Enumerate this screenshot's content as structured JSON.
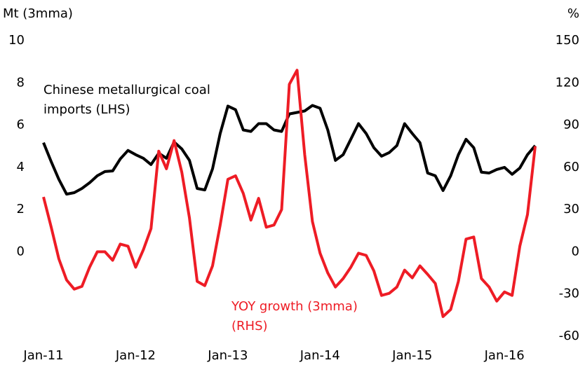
{
  "chart_data": {
    "type": "line",
    "y_label": "Mt (3mma)",
    "y2_label": "%",
    "annotations": [
      {
        "series": 0,
        "lines": [
          "Chinese metallurgical coal",
          "imports (LHS)"
        ]
      },
      {
        "series": 1,
        "lines": [
          "YOY growth (3mma)",
          "(RHS)"
        ]
      }
    ],
    "categories": [
      "Jan-11",
      null,
      null,
      null,
      null,
      null,
      null,
      null,
      null,
      null,
      null,
      null,
      "Jan-12",
      null,
      null,
      null,
      null,
      null,
      null,
      null,
      null,
      null,
      null,
      null,
      "Jan-13",
      null,
      null,
      null,
      null,
      null,
      null,
      null,
      null,
      null,
      null,
      null,
      "Jan-14",
      null,
      null,
      null,
      null,
      null,
      null,
      null,
      null,
      null,
      null,
      null,
      "Jan-15",
      null,
      null,
      null,
      null,
      null,
      null,
      null,
      null,
      null,
      null,
      null,
      "Jan-16",
      null,
      null,
      null,
      null
    ],
    "series": [
      {
        "name": "Chinese metallurgical coal imports (LHS)",
        "color": "#000000",
        "axis": "y",
        "values": [
          5.17,
          4.27,
          3.43,
          2.73,
          2.8,
          3.0,
          3.27,
          3.6,
          3.8,
          3.83,
          4.4,
          4.8,
          4.6,
          4.43,
          4.13,
          4.67,
          4.43,
          5.2,
          4.87,
          4.33,
          3.0,
          2.93,
          3.93,
          5.6,
          6.9,
          6.73,
          5.77,
          5.7,
          6.07,
          6.07,
          5.77,
          5.7,
          6.53,
          6.6,
          6.67,
          6.93,
          6.8,
          5.77,
          4.33,
          4.6,
          5.33,
          6.07,
          5.6,
          4.93,
          4.53,
          4.7,
          5.03,
          6.07,
          5.6,
          5.17,
          3.73,
          3.6,
          2.9,
          3.6,
          4.6,
          5.33,
          4.93,
          3.77,
          3.73,
          3.9,
          4.0,
          3.67,
          3.97,
          4.6,
          5.03
        ]
      },
      {
        "name": "YOY growth (3mma) (RHS)",
        "color": "#ee1c25",
        "axis": "y2",
        "values": [
          39,
          17.5,
          -5,
          -20,
          -26.5,
          -24.5,
          -11,
          0,
          0,
          -6,
          5.5,
          4,
          -11,
          1.5,
          16.5,
          71.5,
          59,
          79,
          56.5,
          24,
          -21,
          -24,
          -10,
          19,
          51.5,
          54,
          41.5,
          22.5,
          38,
          17.5,
          19,
          30,
          119,
          129,
          69,
          21.5,
          -1,
          -15,
          -25,
          -19,
          -11,
          -1,
          -2.5,
          -13.5,
          -31,
          -29.5,
          -25,
          -13,
          -18.5,
          -10,
          -16,
          -22.5,
          -46,
          -41,
          -21,
          9,
          10.5,
          -19,
          -25,
          -35,
          -28.5,
          -31,
          4,
          26.5,
          75
        ]
      }
    ],
    "ylim": [
      -4,
      10
    ],
    "yticks": [
      0,
      2,
      4,
      6,
      8,
      10
    ],
    "y2lim": [
      -60,
      150
    ],
    "y2ticks": [
      -60,
      -30,
      0,
      30,
      60,
      90,
      120,
      150
    ],
    "grid": false
  }
}
